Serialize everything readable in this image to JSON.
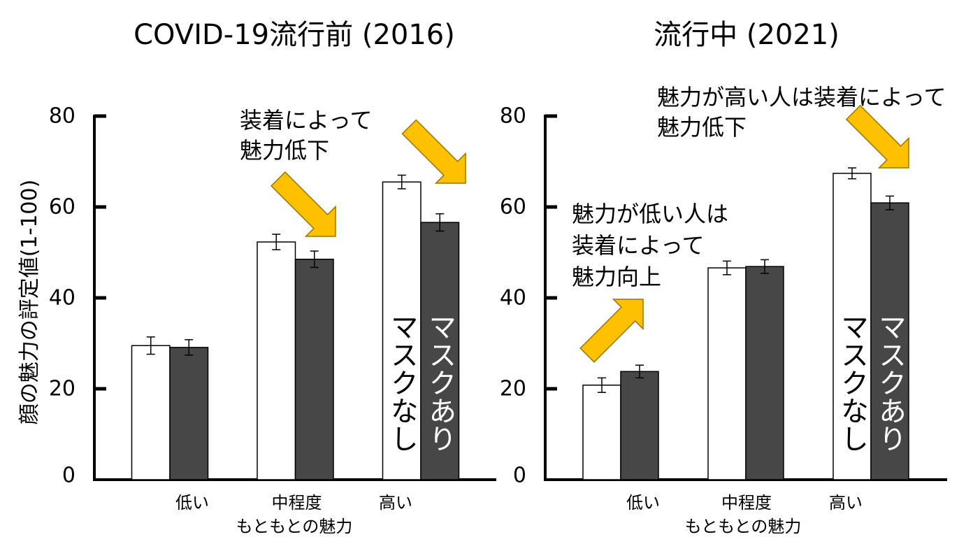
{
  "colors": {
    "background": "#ffffff",
    "axis": "#000000",
    "arrow_fill": "#FFC000",
    "arrow_stroke": "#9c7400"
  },
  "chart_data": [
    {
      "type": "bar",
      "title": "COVID-19流行前 (2016)",
      "ylabel": "顔の魅力の評定値(1-100)",
      "xlabel": "もともとの魅力",
      "categories": [
        "低い",
        "中程度",
        "高い"
      ],
      "ylim": [
        0,
        80
      ],
      "yticks": [
        0,
        20,
        40,
        60,
        80
      ],
      "grid": false,
      "series": [
        {
          "name": "マスクなし",
          "color": "#ffffff",
          "label_color": "#000000",
          "values": [
            29.5,
            52.3,
            65.5
          ],
          "errors": [
            1.9,
            1.7,
            1.5
          ]
        },
        {
          "name": "マスクあり",
          "color": "#474747",
          "label_color": "#ffffff",
          "values": [
            29.1,
            48.5,
            56.6
          ],
          "errors": [
            1.7,
            1.8,
            1.9
          ]
        }
      ],
      "annotations": [
        {
          "lines": [
            "装着によって",
            "魅力低下"
          ]
        }
      ]
    },
    {
      "type": "bar",
      "title": "流行中 (2021)",
      "xlabel": "もともとの魅力",
      "categories": [
        "低い",
        "中程度",
        "高い"
      ],
      "ylim": [
        0,
        80
      ],
      "yticks": [
        0,
        20,
        40,
        60,
        80
      ],
      "grid": false,
      "series": [
        {
          "name": "マスクなし",
          "color": "#ffffff",
          "label_color": "#000000",
          "values": [
            20.8,
            46.6,
            67.4
          ],
          "errors": [
            1.6,
            1.5,
            1.2
          ]
        },
        {
          "name": "マスクあり",
          "color": "#474747",
          "label_color": "#ffffff",
          "values": [
            23.8,
            46.9,
            60.9
          ],
          "errors": [
            1.4,
            1.5,
            1.5
          ]
        }
      ],
      "annotations": [
        {
          "lines": [
            "魅力が高い人は装着によって",
            "魅力低下"
          ]
        },
        {
          "lines": [
            "魅力が低い人は",
            "装着によって",
            "魅力向上"
          ]
        }
      ]
    }
  ]
}
